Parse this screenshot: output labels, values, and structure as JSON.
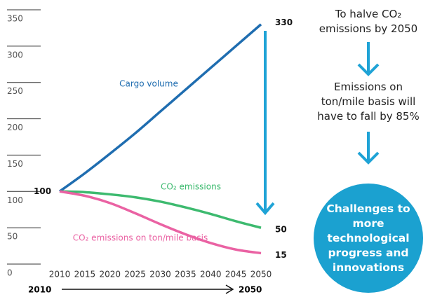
{
  "chart_data": {
    "type": "line",
    "x": [
      2010,
      2015,
      2020,
      2025,
      2030,
      2035,
      2040,
      2045,
      2050
    ],
    "xlim": [
      2010,
      2050
    ],
    "xticks": [
      2010,
      2015,
      2020,
      2025,
      2030,
      2035,
      2040,
      2045,
      2050
    ],
    "ylim": [
      0,
      350
    ],
    "yticks": [
      0,
      50,
      100,
      150,
      200,
      250,
      300,
      350
    ],
    "series": [
      {
        "name": "Cargo volume",
        "color": "#1f6db0",
        "values": [
          100,
          125,
          152,
          180,
          210,
          240,
          270,
          300,
          330
        ]
      },
      {
        "name": "CO₂ emissions",
        "color": "#3dba6f",
        "values": [
          100,
          99,
          96,
          92,
          86,
          78,
          69,
          59,
          50
        ]
      },
      {
        "name": "CO₂ emissions on ton/mile basis",
        "color": "#ea62a3",
        "values": [
          100,
          94,
          84,
          70,
          55,
          41,
          29,
          20,
          15
        ]
      }
    ],
    "period": {
      "from": "2010",
      "to": "2050"
    }
  },
  "panel": {
    "steps": [
      "To halve CO₂ emissions by 2050",
      "Emissions on ton/mile basis will have to fall by 85%"
    ],
    "conclusion": "Challenges to more technological progress and innovations"
  }
}
